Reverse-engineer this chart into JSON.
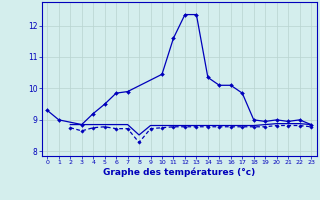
{
  "xlabel": "Graphe des températures (°c)",
  "background_color": "#d4eeed",
  "grid_color": "#b8d4d0",
  "line_color": "#0000bb",
  "x_hours": [
    0,
    1,
    2,
    3,
    4,
    5,
    6,
    7,
    8,
    9,
    10,
    11,
    12,
    13,
    14,
    15,
    16,
    17,
    18,
    19,
    20,
    21,
    22,
    23
  ],
  "temp_main": [
    9.3,
    9.0,
    null,
    8.85,
    9.2,
    9.5,
    9.85,
    9.9,
    null,
    null,
    10.45,
    11.6,
    12.35,
    12.35,
    10.35,
    10.1,
    10.1,
    9.85,
    9.0,
    8.95,
    9.0,
    8.95,
    9.0,
    8.85
  ],
  "temp_low": [
    null,
    null,
    8.75,
    8.65,
    8.75,
    8.78,
    8.72,
    8.72,
    8.28,
    8.72,
    8.75,
    8.78,
    8.78,
    8.78,
    8.78,
    8.78,
    8.78,
    8.78,
    8.78,
    8.78,
    8.82,
    8.82,
    8.82,
    8.78
  ],
  "temp_flat": [
    null,
    null,
    8.85,
    8.85,
    8.85,
    8.85,
    8.85,
    8.85,
    8.52,
    8.82,
    8.82,
    8.82,
    8.82,
    8.82,
    8.82,
    8.82,
    8.82,
    8.82,
    8.82,
    8.85,
    8.88,
    8.88,
    8.88,
    8.85
  ],
  "ylim": [
    7.85,
    12.75
  ],
  "yticks": [
    8,
    9,
    10,
    11,
    12
  ],
  "xticks": [
    0,
    1,
    2,
    3,
    4,
    5,
    6,
    7,
    8,
    9,
    10,
    11,
    12,
    13,
    14,
    15,
    16,
    17,
    18,
    19,
    20,
    21,
    22,
    23
  ]
}
